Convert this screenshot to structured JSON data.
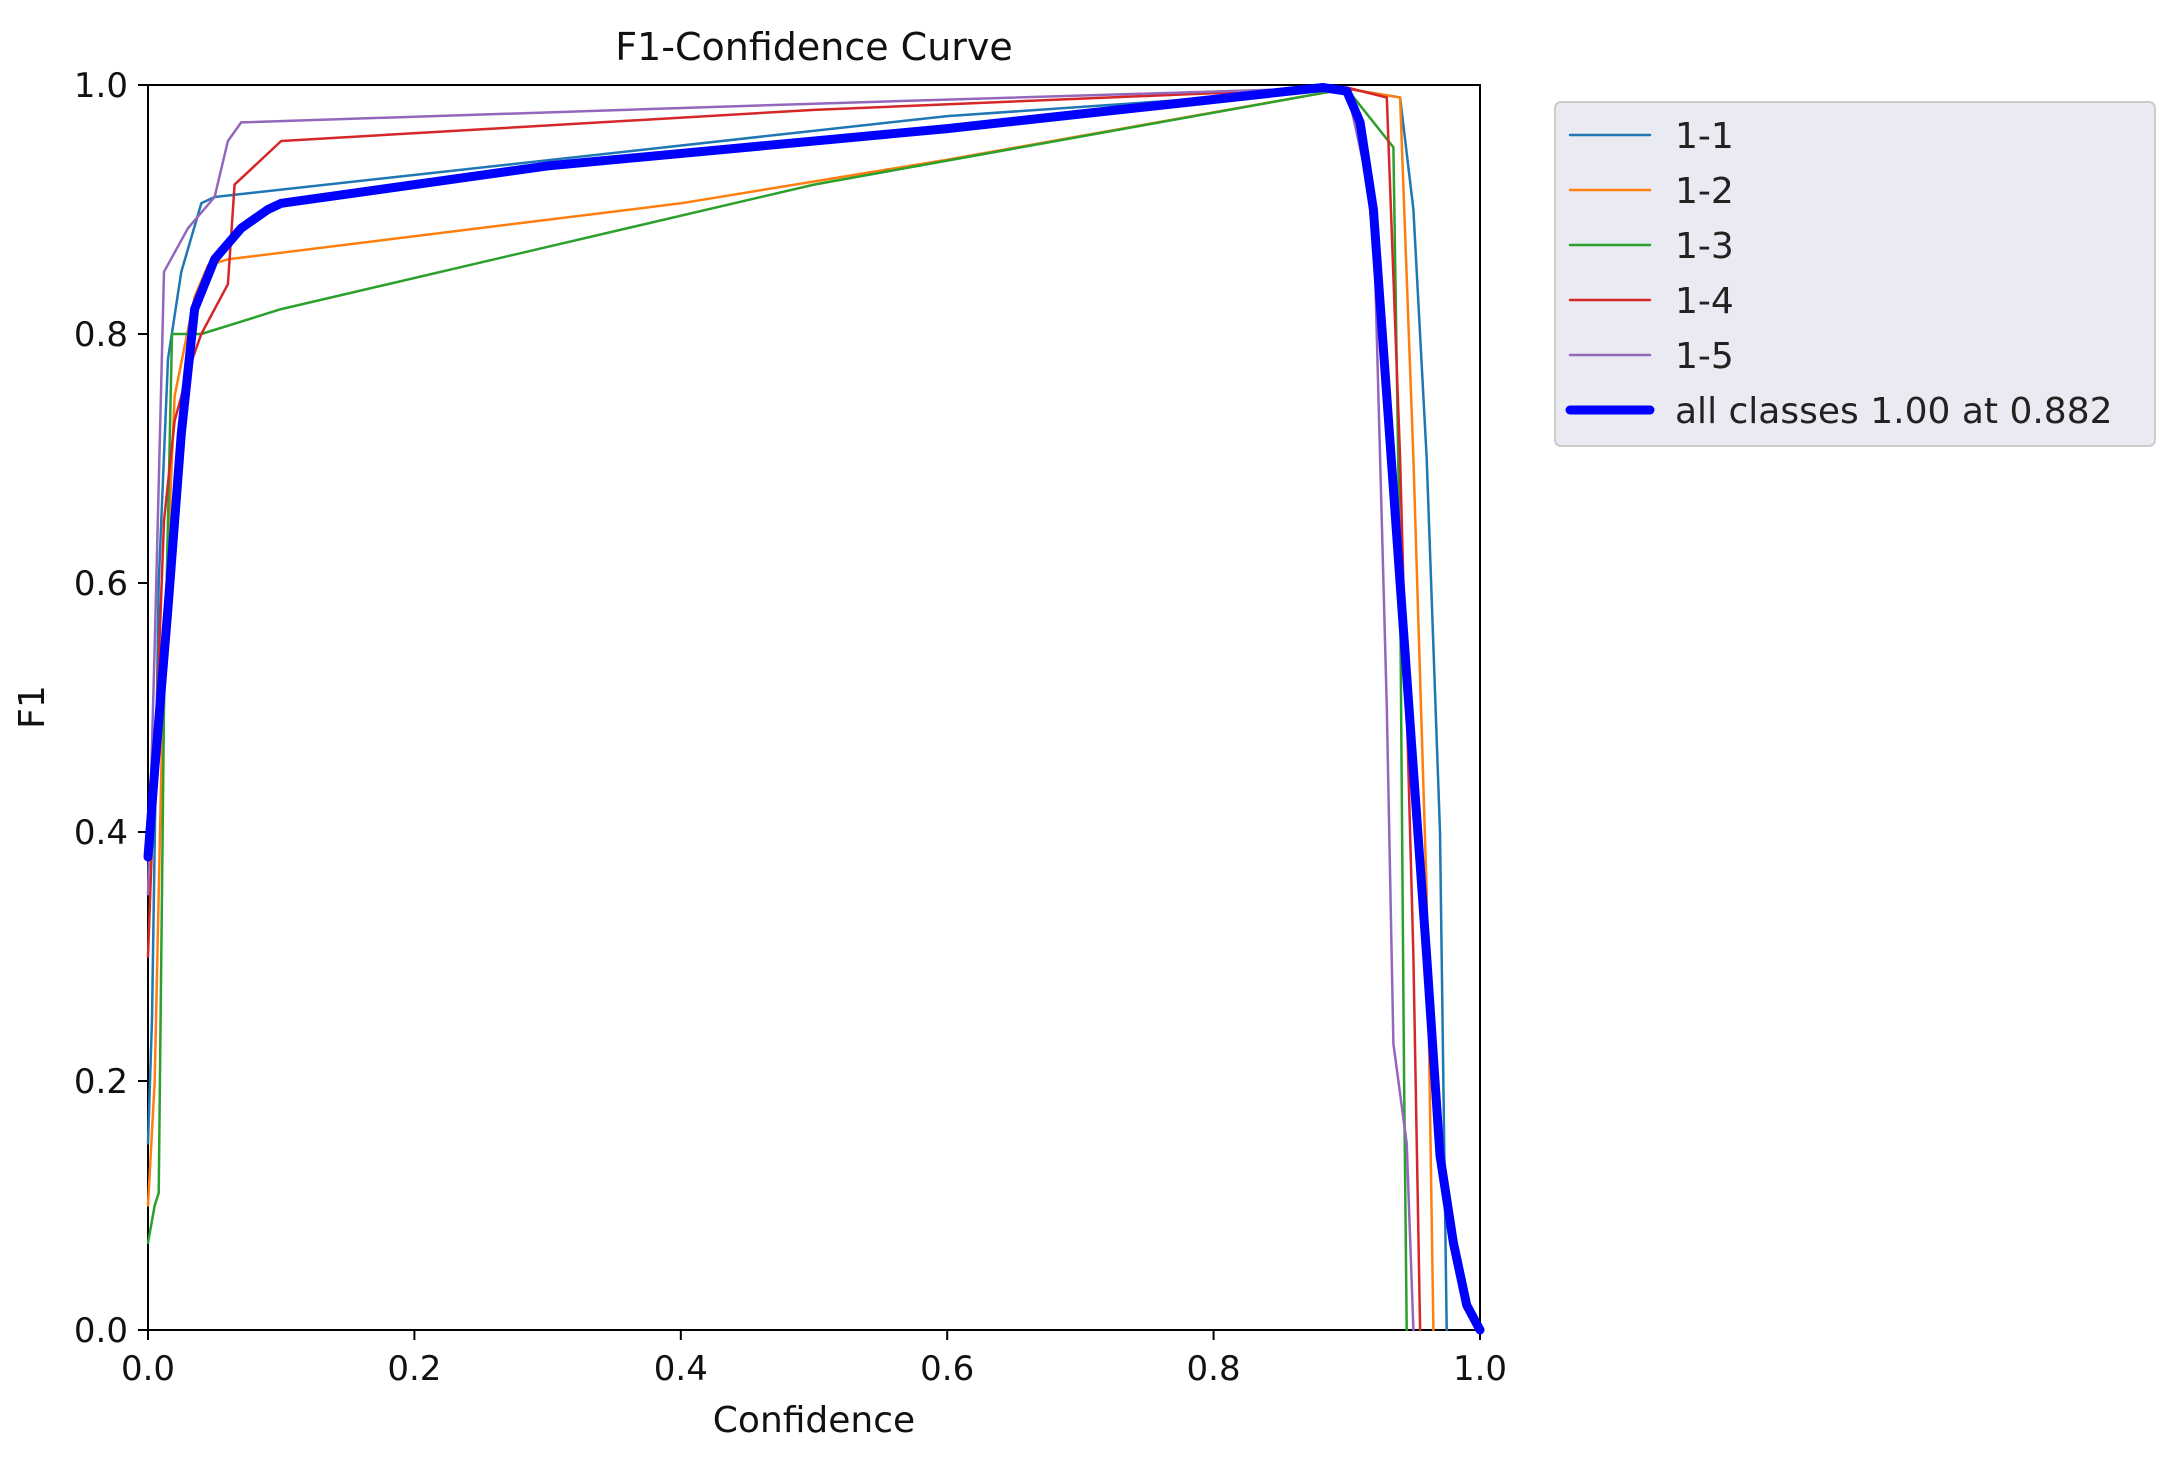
{
  "chart_data": {
    "type": "line",
    "title": "F1-Confidence Curve",
    "xlabel": "Confidence",
    "ylabel": "F1",
    "xlim": [
      0,
      1
    ],
    "ylim": [
      0,
      1
    ],
    "xticks": [
      "0.0",
      "0.2",
      "0.4",
      "0.6",
      "0.8",
      "1.0"
    ],
    "yticks": [
      "0.0",
      "0.2",
      "0.4",
      "0.6",
      "0.8",
      "1.0"
    ],
    "legend_position": "outside-upper-right",
    "series": [
      {
        "name": "1-1",
        "color": "#1f77b4",
        "width": "thin",
        "points": [
          [
            0,
            0.15
          ],
          [
            0.003,
            0.25
          ],
          [
            0.008,
            0.6
          ],
          [
            0.015,
            0.78
          ],
          [
            0.025,
            0.85
          ],
          [
            0.04,
            0.905
          ],
          [
            0.05,
            0.91
          ],
          [
            0.6,
            0.975
          ],
          [
            0.9,
            0.997
          ],
          [
            0.94,
            0.99
          ],
          [
            0.95,
            0.9
          ],
          [
            0.96,
            0.7
          ],
          [
            0.97,
            0.4
          ],
          [
            0.975,
            0.0
          ]
        ]
      },
      {
        "name": "1-2",
        "color": "#ff7f0e",
        "width": "thin",
        "points": [
          [
            0,
            0.1
          ],
          [
            0.005,
            0.2
          ],
          [
            0.012,
            0.55
          ],
          [
            0.02,
            0.75
          ],
          [
            0.035,
            0.83
          ],
          [
            0.045,
            0.855
          ],
          [
            0.06,
            0.86
          ],
          [
            0.4,
            0.905
          ],
          [
            0.6,
            0.94
          ],
          [
            0.9,
            0.997
          ],
          [
            0.94,
            0.99
          ],
          [
            0.95,
            0.7
          ],
          [
            0.96,
            0.35
          ],
          [
            0.965,
            0.0
          ]
        ]
      },
      {
        "name": "1-3",
        "color": "#2ca02c",
        "width": "thin",
        "points": [
          [
            0,
            0.07
          ],
          [
            0.005,
            0.1
          ],
          [
            0.008,
            0.11
          ],
          [
            0.012,
            0.5
          ],
          [
            0.018,
            0.8
          ],
          [
            0.04,
            0.8
          ],
          [
            0.1,
            0.82
          ],
          [
            0.5,
            0.92
          ],
          [
            0.9,
            0.997
          ],
          [
            0.935,
            0.95
          ],
          [
            0.94,
            0.6
          ],
          [
            0.943,
            0.2
          ],
          [
            0.945,
            0.0
          ]
        ]
      },
      {
        "name": "1-4",
        "color": "#d62728",
        "width": "thin",
        "points": [
          [
            0,
            0.3
          ],
          [
            0.005,
            0.45
          ],
          [
            0.012,
            0.65
          ],
          [
            0.02,
            0.73
          ],
          [
            0.03,
            0.77
          ],
          [
            0.04,
            0.8
          ],
          [
            0.06,
            0.84
          ],
          [
            0.065,
            0.92
          ],
          [
            0.1,
            0.955
          ],
          [
            0.5,
            0.98
          ],
          [
            0.9,
            0.998
          ],
          [
            0.93,
            0.99
          ],
          [
            0.94,
            0.7
          ],
          [
            0.95,
            0.3
          ],
          [
            0.955,
            0.0
          ]
        ]
      },
      {
        "name": "1-5",
        "color": "#9467bd",
        "width": "thin",
        "points": [
          [
            0,
            0.35
          ],
          [
            0.005,
            0.55
          ],
          [
            0.012,
            0.85
          ],
          [
            0.03,
            0.885
          ],
          [
            0.05,
            0.91
          ],
          [
            0.06,
            0.955
          ],
          [
            0.07,
            0.97
          ],
          [
            0.5,
            0.985
          ],
          [
            0.9,
            0.998
          ],
          [
            0.92,
            0.9
          ],
          [
            0.93,
            0.5
          ],
          [
            0.935,
            0.23
          ],
          [
            0.945,
            0.15
          ],
          [
            0.95,
            0.0
          ]
        ]
      },
      {
        "name": "all classes 1.00 at 0.882",
        "color": "#0000ff",
        "width": "thick",
        "points": [
          [
            0,
            0.38
          ],
          [
            0.005,
            0.45
          ],
          [
            0.015,
            0.58
          ],
          [
            0.025,
            0.72
          ],
          [
            0.035,
            0.82
          ],
          [
            0.05,
            0.86
          ],
          [
            0.07,
            0.885
          ],
          [
            0.09,
            0.9
          ],
          [
            0.1,
            0.905
          ],
          [
            0.3,
            0.935
          ],
          [
            0.6,
            0.965
          ],
          [
            0.882,
            0.998
          ],
          [
            0.9,
            0.995
          ],
          [
            0.91,
            0.97
          ],
          [
            0.92,
            0.9
          ],
          [
            0.93,
            0.75
          ],
          [
            0.94,
            0.6
          ],
          [
            0.95,
            0.45
          ],
          [
            0.96,
            0.3
          ],
          [
            0.97,
            0.14
          ],
          [
            0.98,
            0.07
          ],
          [
            0.99,
            0.02
          ],
          [
            1.0,
            0.0
          ]
        ]
      }
    ]
  }
}
